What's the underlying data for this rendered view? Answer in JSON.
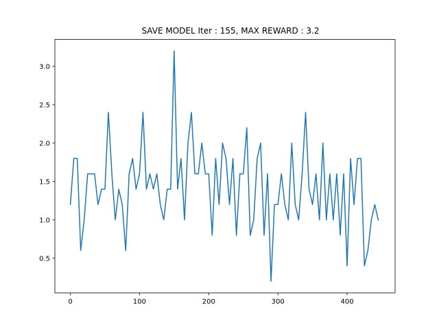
{
  "chart_data": {
    "type": "line",
    "title": "SAVE MODEL Iter : 155, MAX REWARD : 3.2",
    "xlabel": "",
    "ylabel": "",
    "xlim": [
      -22.35,
      469.35
    ],
    "ylim": [
      0.05,
      3.35
    ],
    "xticks": [
      0,
      100,
      200,
      300,
      400
    ],
    "yticks": [
      0.5,
      1.0,
      1.5,
      2.0,
      2.5,
      3.0
    ],
    "xtick_labels": [
      "0",
      "100",
      "200",
      "300",
      "400"
    ],
    "ytick_labels": [
      "0.5",
      "1.0",
      "1.5",
      "2.0",
      "2.5",
      "3.0"
    ],
    "grid": false,
    "line_color": "#1f77b4",
    "series": [
      {
        "x": [
          0,
          5,
          10,
          15,
          20,
          25,
          30,
          35,
          40,
          45,
          50,
          55,
          60,
          65,
          70,
          75,
          80,
          85,
          90,
          95,
          100,
          105,
          110,
          115,
          120,
          125,
          130,
          135,
          140,
          145,
          150,
          155,
          160,
          165,
          170,
          175,
          180,
          185,
          190,
          195,
          200,
          205,
          210,
          215,
          220,
          225,
          230,
          235,
          240,
          245,
          250,
          255,
          260,
          265,
          270,
          275,
          280,
          285,
          290,
          295,
          300,
          305,
          310,
          315,
          320,
          325,
          330,
          335,
          340,
          345,
          350,
          355,
          360,
          365,
          370,
          375,
          380,
          385,
          390,
          395,
          400,
          405,
          410,
          415,
          420,
          425,
          430,
          435,
          440,
          445
        ],
        "y": [
          1.2,
          1.8,
          1.8,
          0.6,
          1.0,
          1.6,
          1.6,
          1.6,
          1.2,
          1.4,
          1.4,
          2.4,
          1.6,
          1.0,
          1.4,
          1.2,
          0.6,
          1.6,
          1.8,
          1.4,
          1.6,
          2.4,
          1.4,
          1.6,
          1.4,
          1.6,
          1.2,
          1.0,
          1.4,
          1.4,
          3.2,
          1.4,
          1.8,
          1.0,
          2.0,
          2.4,
          1.6,
          1.6,
          2.0,
          1.6,
          1.6,
          0.8,
          1.8,
          1.2,
          2.0,
          1.8,
          1.2,
          1.8,
          0.8,
          1.6,
          1.6,
          2.2,
          0.8,
          1.0,
          1.8,
          2.0,
          0.8,
          1.6,
          0.2,
          1.2,
          1.2,
          1.6,
          1.2,
          1.0,
          2.0,
          1.2,
          1.0,
          1.6,
          2.4,
          1.4,
          1.2,
          1.6,
          1.0,
          2.0,
          1.0,
          1.6,
          1.0,
          1.6,
          0.8,
          1.6,
          0.4,
          1.8,
          1.2,
          1.8,
          1.8,
          0.4,
          0.6,
          1.0,
          1.2,
          1.0
        ]
      }
    ]
  }
}
